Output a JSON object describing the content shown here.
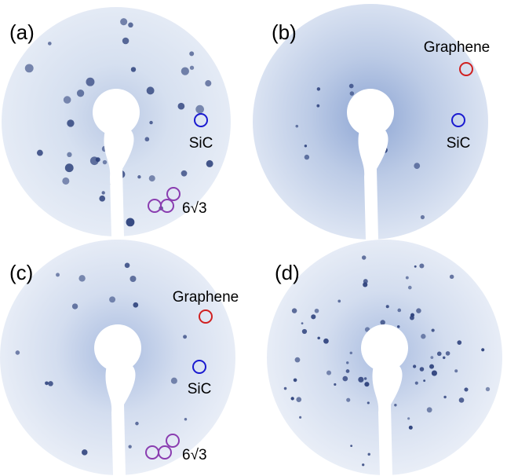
{
  "panels": [
    {
      "label": "(a)",
      "annotations": [
        "SiC",
        "6√3"
      ]
    },
    {
      "label": "(b)",
      "annotations": [
        "Graphene",
        "SiC"
      ]
    },
    {
      "label": "(c)",
      "annotations": [
        "Graphene",
        "SiC",
        "6√3"
      ]
    },
    {
      "label": "(d)",
      "annotations": []
    }
  ]
}
